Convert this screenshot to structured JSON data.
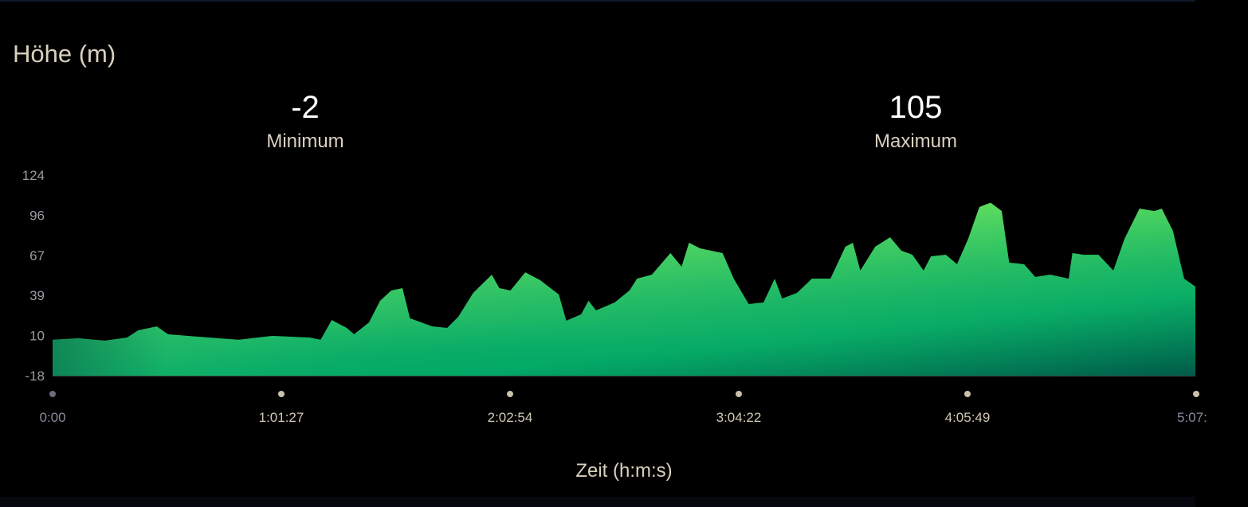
{
  "title": "Höhe (m)",
  "stats": [
    {
      "value": "-2",
      "label": "Minimum"
    },
    {
      "value": "105",
      "label": "Maximum"
    }
  ],
  "chart_data": {
    "type": "area",
    "title": "Höhe (m)",
    "xlabel": "Zeit (h:m:s)",
    "ylabel": "",
    "ylim": [
      -18,
      124
    ],
    "yticks": [
      "124",
      "96",
      "67",
      "39",
      "10",
      "-18"
    ],
    "xticks": [
      "0:00",
      "1:01:27",
      "2:02:54",
      "3:04:22",
      "4:05:49",
      "5:07:"
    ],
    "grid": false,
    "colors": {
      "fill_top": "#6fe85a",
      "fill_bottom": "#00a866",
      "fill_dark": "#005a48",
      "axis_text": "#9a9aa3",
      "tick_dot": "#c9c2aa",
      "first_dot": "#6c6c7c"
    },
    "x": [
      "0:00",
      "0:07",
      "0:14",
      "0:20",
      "0:23",
      "0:28",
      "0:31",
      "0:39",
      "0:50",
      "0:59",
      "1:09",
      "1:12",
      "1:15",
      "1:19",
      "1:21",
      "1:25",
      "1:28",
      "1:31",
      "1:34",
      "1:36",
      "1:42",
      "1:46",
      "1:49",
      "1:53",
      "1:58",
      "2:00",
      "2:03",
      "2:07",
      "2:11",
      "2:16",
      "2:18",
      "2:22",
      "2:24",
      "2:26",
      "2:31",
      "2:35",
      "2:37",
      "2:41",
      "2:46",
      "2:49",
      "2:51",
      "2:54",
      "3:00",
      "3:03",
      "3:07",
      "3:11",
      "3:14",
      "3:16",
      "3:20",
      "3:24",
      "3:29",
      "3:33",
      "3:35",
      "3:37",
      "3:41",
      "3:45",
      "3:48",
      "3:51",
      "3:54",
      "3:56",
      "4:00",
      "4:03",
      "4:06",
      "4:09",
      "4:12",
      "4:15",
      "4:17",
      "4:21",
      "4:24",
      "4:28",
      "4:33",
      "4:34",
      "4:37",
      "4:41",
      "4:45",
      "4:48",
      "4:52",
      "4:56",
      "4:58",
      "5:01",
      "5:04",
      "5:07"
    ],
    "values": [
      7.4,
      8.5,
      6.8,
      9.0,
      14.1,
      16.9,
      11.3,
      9.6,
      7.4,
      10.2,
      9.0,
      7.4,
      21.4,
      15.8,
      11.3,
      19.7,
      35,
      42.3,
      44,
      22.6,
      16.9,
      15.8,
      23.7,
      40.6,
      53.5,
      44,
      42.3,
      55.2,
      49.6,
      39.5,
      20.9,
      25.4,
      35,
      28.2,
      33.8,
      42.3,
      50.7,
      53.5,
      68.8,
      59.2,
      76.1,
      72.1,
      68.8,
      50.7,
      32.7,
      33.8,
      50.7,
      36.6,
      40.6,
      50.7,
      50.7,
      73.3,
      76.1,
      56.4,
      73.3,
      80,
      70.5,
      67.6,
      56.4,
      66.5,
      67.6,
      60.9,
      78.9,
      101.4,
      104.5,
      98.6,
      62,
      60.9,
      51.9,
      53.5,
      50.7,
      68.8,
      67.6,
      67.6,
      56.4,
      78.9,
      100.3,
      98.6,
      100.3,
      84.5,
      50.7,
      45.1
    ]
  }
}
